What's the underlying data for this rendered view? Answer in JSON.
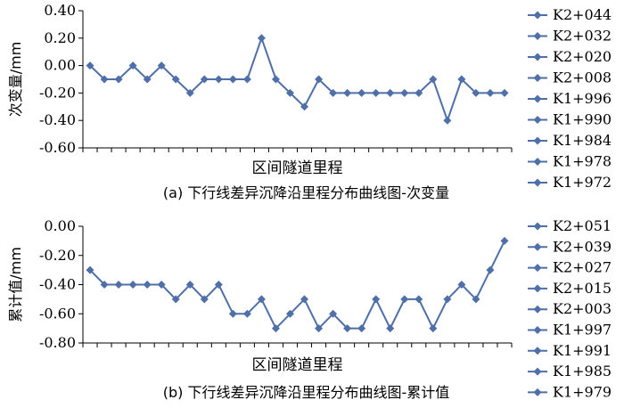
{
  "colors": {
    "series": "#4F6FA8",
    "axis": "#000000"
  },
  "chart_data": [
    {
      "type": "line",
      "ylabel": "次变量/mm",
      "xlabel": "区间隧道里程",
      "caption": "(a) 下行线差异沉降沿里程分布曲线图-次变量",
      "ylim": [
        -0.6,
        0.4
      ],
      "yticks": [
        "0.40",
        "0.20",
        "0.00",
        "-0.20",
        "-0.40",
        "-0.60"
      ],
      "yticks_values": [
        0.4,
        0.2,
        0.0,
        -0.2,
        -0.4,
        -0.6
      ],
      "legend_position": "right",
      "legend": [
        "K2+044",
        "K2+032",
        "K2+020",
        "K2+008",
        "K1+996",
        "K1+990",
        "K1+984",
        "K1+978",
        "K1+972"
      ],
      "values": [
        0.0,
        -0.1,
        -0.1,
        0.0,
        -0.1,
        0.0,
        -0.1,
        -0.2,
        -0.1,
        -0.1,
        -0.1,
        -0.1,
        0.2,
        -0.1,
        -0.2,
        -0.3,
        -0.1,
        -0.2,
        -0.2,
        -0.2,
        -0.2,
        -0.2,
        -0.2,
        -0.2,
        -0.1,
        -0.4,
        -0.1,
        -0.2,
        -0.2,
        -0.2
      ]
    },
    {
      "type": "line",
      "ylabel": "累计值/mm",
      "xlabel": "区间隧道里程",
      "caption": "(b) 下行线差异沉降沿里程分布曲线图-累计值",
      "ylim": [
        -0.8,
        0.0
      ],
      "yticks": [
        "0.00",
        "-0.20",
        "-0.40",
        "-0.60",
        "-0.80"
      ],
      "yticks_values": [
        0.0,
        -0.2,
        -0.4,
        -0.6,
        -0.8
      ],
      "legend_position": "right",
      "legend": [
        "K2+051",
        "K2+039",
        "K2+027",
        "K2+015",
        "K2+003",
        "K1+997",
        "K1+991",
        "K1+985",
        "K1+979"
      ],
      "values": [
        -0.3,
        -0.4,
        -0.4,
        -0.4,
        -0.4,
        -0.4,
        -0.5,
        -0.4,
        -0.5,
        -0.4,
        -0.6,
        -0.6,
        -0.5,
        -0.7,
        -0.6,
        -0.5,
        -0.7,
        -0.6,
        -0.7,
        -0.7,
        -0.5,
        -0.7,
        -0.5,
        -0.5,
        -0.7,
        -0.5,
        -0.4,
        -0.5,
        -0.3,
        -0.1
      ]
    }
  ]
}
